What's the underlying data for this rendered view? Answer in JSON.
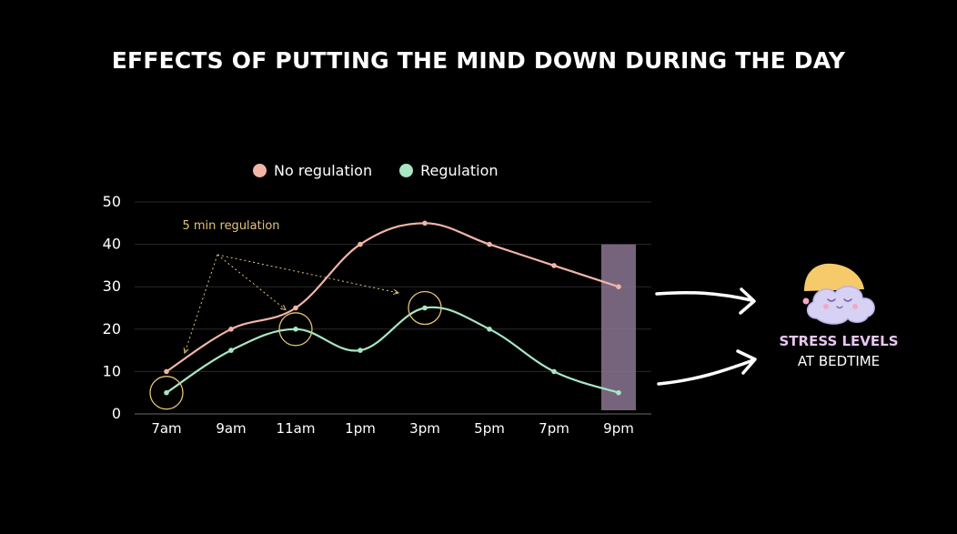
{
  "title": "EFFECTS OF PUTTING THE MIND DOWN DURING THE DAY",
  "legend": [
    {
      "label": "No regulation",
      "color": "#f2b5a7"
    },
    {
      "label": "Regulation",
      "color": "#a8e6c4"
    }
  ],
  "annotation": "5 min regulation",
  "side_label": {
    "line1": "STRESS LEVELS",
    "line2": "AT BEDTIME"
  },
  "icons": {
    "sleep_cloud": "sleeping-cloud-icon",
    "arrows": "arrow-right-icon"
  },
  "colors": {
    "background": "#000000",
    "no_regulation": "#f2b5a7",
    "regulation": "#a8e6c4",
    "annotation": "#e3c27a",
    "highlight": "#8a7690",
    "grid": "#2a2a2a"
  },
  "chart_data": {
    "type": "line",
    "categories": [
      "7am",
      "9am",
      "11am",
      "1pm",
      "3pm",
      "5pm",
      "7pm",
      "9pm"
    ],
    "series": [
      {
        "name": "No regulation",
        "values": [
          10,
          20,
          25,
          40,
          45,
          40,
          35,
          30
        ]
      },
      {
        "name": "Regulation",
        "values": [
          5,
          15,
          20,
          15,
          25,
          20,
          10,
          5
        ]
      }
    ],
    "yticks": [
      0,
      10,
      20,
      30,
      40,
      50
    ],
    "ylim": [
      0,
      50
    ],
    "grid": true,
    "legend_position": "top",
    "highlighted_categories": [
      "7am",
      "11am",
      "3pm"
    ],
    "highlight_band": "9pm"
  }
}
